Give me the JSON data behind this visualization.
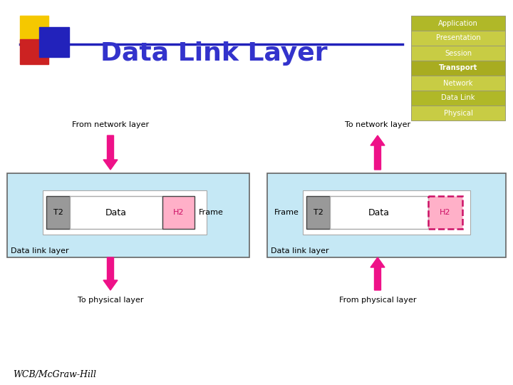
{
  "title": "Data Link Layer",
  "title_color": "#3333cc",
  "title_fontsize": 26,
  "bg_color": "#ffffff",
  "layers": [
    "Application",
    "Presentation",
    "Session",
    "Transport",
    "Network",
    "Data Link",
    "Physical"
  ],
  "arrow_color": "#ee1188",
  "light_blue": "#c5e8f5",
  "t2_color": "#999999",
  "h2_color": "#ffb0c8",
  "data_color": "#ffffff",
  "wcb_text": "WCB/McGraw-Hill",
  "layer_colors": [
    "#b0b828",
    "#c8cc44",
    "#c8cc44",
    "#a8ac20",
    "#c8cc44",
    "#b0b828",
    "#c8cc44"
  ]
}
